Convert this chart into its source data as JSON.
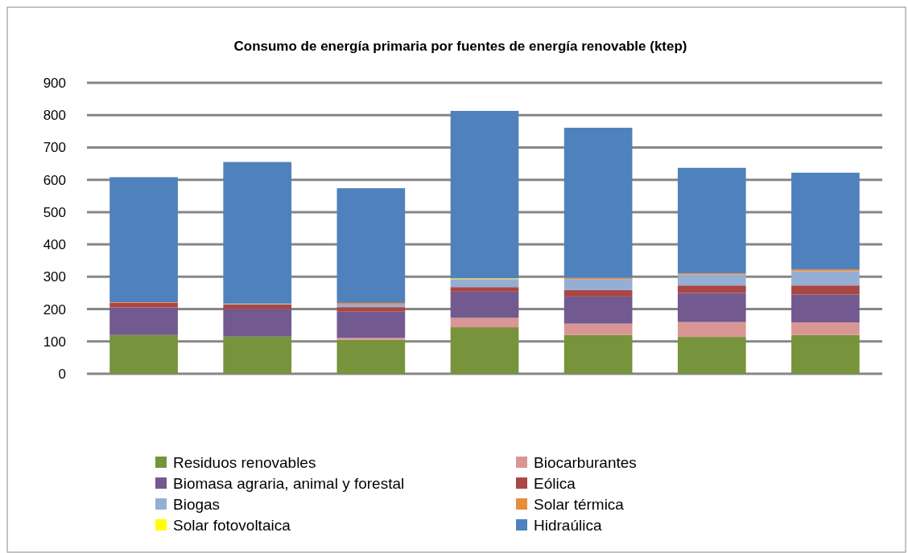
{
  "chart_data": {
    "type": "bar",
    "title": "Consumo de energía primaria por fuentes de energía renovable (ktep)",
    "stacked": true,
    "categories": [
      null,
      null,
      null,
      null,
      null,
      null,
      null
    ],
    "ylim": [
      0,
      900
    ],
    "yticks": [
      0,
      100,
      200,
      300,
      400,
      500,
      600,
      700,
      800,
      900
    ],
    "grid": "y",
    "legend": "bottom",
    "series": [
      {
        "name": "Residuos renovables",
        "color": "#77933c",
        "values": [
          120,
          115,
          105,
          144,
          120,
          114,
          120
        ]
      },
      {
        "name": "Biocarburantes",
        "color": "#d99694",
        "values": [
          0,
          0,
          6,
          29,
          35,
          46,
          39
        ]
      },
      {
        "name": "Biomasa agraria, animal y forestal",
        "color": "#72598f",
        "values": [
          85,
          85,
          81,
          81,
          84,
          90,
          86
        ]
      },
      {
        "name": "Eólica",
        "color": "#aa4643",
        "values": [
          14,
          14,
          14,
          14,
          20,
          23,
          28
        ]
      },
      {
        "name": "Biogas",
        "color": "#95aed6",
        "values": [
          0,
          2,
          8,
          24,
          34,
          34,
          44
        ]
      },
      {
        "name": "Solar térmica",
        "color": "#e88d3e",
        "values": [
          2,
          1,
          5,
          1,
          4,
          4,
          6
        ]
      },
      {
        "name": "Solar fotovoltaica",
        "color": "#ffff00",
        "values": [
          0,
          0,
          0,
          2,
          0,
          0,
          0
        ]
      },
      {
        "name": "Hidraúlica",
        "color": "#4f81bd",
        "values": [
          387,
          438,
          355,
          518,
          464,
          326,
          299
        ]
      }
    ]
  }
}
